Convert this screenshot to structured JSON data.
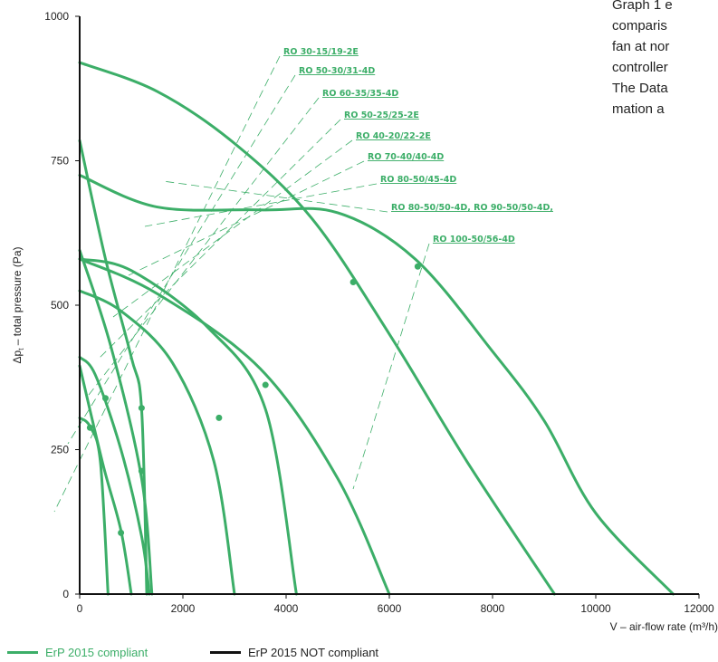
{
  "side_text": [
    "Graph 1 e",
    "comparis",
    "fan at nor",
    "controller",
    "The Data",
    "mation a"
  ],
  "legend": [
    {
      "label": "ErP 2015 compliant",
      "color": "#3cae68"
    },
    {
      "label": "ErP 2015 NOT compliant",
      "color": "#111111"
    }
  ],
  "chart_data": {
    "type": "line",
    "xlabel": "V – air-flow rate (m³/h)",
    "ylabel_main": "Δp",
    "ylabel_sub": "t",
    "ylabel_rest": " – total pressure (Pa)",
    "xlim": [
      0,
      12000
    ],
    "ylim": [
      0,
      1000
    ],
    "x_ticks": [
      0,
      2000,
      4000,
      6000,
      8000,
      10000,
      12000
    ],
    "y_ticks": [
      0,
      250,
      500,
      750,
      1000
    ],
    "series_color": "#3cae68",
    "labels": [
      "RO 30-15/19-2E",
      "RO 50-30/31-4D",
      "RO 60-35/35-4D",
      "RO 50-25/25-2E",
      "RO 40-20/22-2E",
      "RO 70-40/40-4D",
      "RO 80-50/45-4D",
      "RO 80-50/50-4D, RO 90-50/50-4D,",
      "RO 100-50/56-4D"
    ],
    "curves": [
      {
        "points": [
          [
            0,
            305
          ],
          [
            200,
            290
          ],
          [
            400,
            230
          ],
          [
            550,
            0
          ]
        ],
        "marker": [
          200,
          288
        ]
      },
      {
        "points": [
          [
            0,
            410
          ],
          [
            300,
            380
          ],
          [
            800,
            250
          ],
          [
            1200,
            100
          ],
          [
            1350,
            0
          ]
        ],
        "marker": [
          500,
          339
        ]
      },
      {
        "points": [
          [
            0,
            395
          ],
          [
            450,
            225
          ],
          [
            800,
            110
          ],
          [
            1000,
            0
          ]
        ],
        "marker": [
          800,
          106
        ]
      },
      {
        "points": [
          [
            0,
            595
          ],
          [
            600,
            430
          ],
          [
            1200,
            200
          ],
          [
            1400,
            0
          ]
        ],
        "marker": [
          1200,
          213
        ]
      },
      {
        "points": [
          [
            0,
            785
          ],
          [
            500,
            580
          ],
          [
            1000,
            410
          ],
          [
            1200,
            320
          ],
          [
            1300,
            0
          ]
        ],
        "marker": [
          1200,
          322
        ]
      },
      {
        "points": [
          [
            0,
            525
          ],
          [
            800,
            490
          ],
          [
            1800,
            400
          ],
          [
            2600,
            230
          ],
          [
            3000,
            0
          ]
        ],
        "marker": [
          2700,
          305
        ]
      },
      {
        "points": [
          [
            0,
            580
          ],
          [
            1000,
            560
          ],
          [
            2500,
            460
          ],
          [
            3600,
            320
          ],
          [
            4200,
            0
          ]
        ],
        "marker": [
          3600,
          362
        ]
      },
      {
        "points": [
          [
            0,
            920
          ],
          [
            1500,
            870
          ],
          [
            3000,
            780
          ],
          [
            4500,
            650
          ],
          [
            6000,
            450
          ],
          [
            7500,
            230
          ],
          [
            9200,
            0
          ]
        ],
        "marker": [
          5300,
          540
        ]
      },
      {
        "points": [
          [
            0,
            725
          ],
          [
            1500,
            670
          ],
          [
            3500,
            665
          ],
          [
            5000,
            660
          ],
          [
            6500,
            580
          ],
          [
            8000,
            420
          ],
          [
            9000,
            300
          ],
          [
            10000,
            140
          ],
          [
            11500,
            0
          ]
        ],
        "marker": [
          6550,
          567
        ]
      },
      {
        "points": [
          [
            0,
            580
          ],
          [
            1500,
            520
          ],
          [
            3500,
            390
          ],
          [
            5000,
            200
          ],
          [
            6000,
            0
          ]
        ],
        "marker": [
          null,
          null
        ]
      }
    ]
  }
}
